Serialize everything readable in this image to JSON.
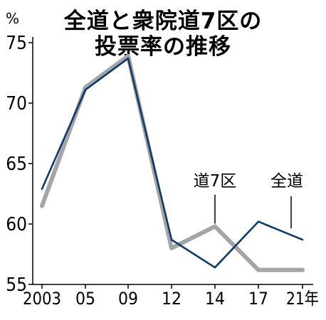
{
  "chart_data": {
    "type": "line",
    "title": [
      "全道と衆院道7区の",
      "投票率の推移"
    ],
    "unit": "%",
    "categories": [
      "2003",
      "05",
      "09",
      "12",
      "14",
      "17",
      "21年"
    ],
    "ylim": [
      55,
      75
    ],
    "yticks": [
      55,
      60,
      65,
      70,
      75
    ],
    "series": [
      {
        "name": "道7区",
        "color": "#a3a5a8",
        "values": [
          61.5,
          71.3,
          73.9,
          58.0,
          59.8,
          56.2,
          56.2
        ]
      },
      {
        "name": "全道",
        "color": "#0e3a64",
        "values": [
          62.9,
          71.1,
          73.7,
          58.7,
          56.4,
          60.2,
          58.7
        ]
      }
    ]
  }
}
